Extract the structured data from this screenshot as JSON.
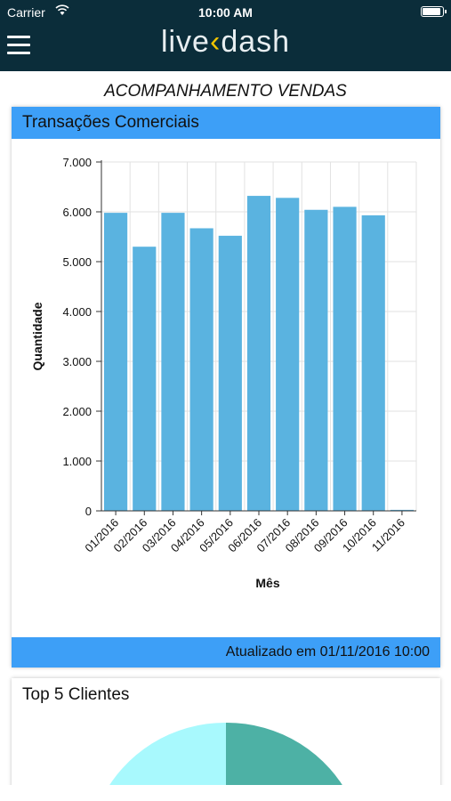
{
  "status_bar": {
    "carrier": "Carrier",
    "time": "10:00 AM",
    "battery_level": 1.0
  },
  "header": {
    "logo_text_a": "live",
    "logo_text_b": "dash",
    "menu_icon": "hamburger-menu-icon"
  },
  "page": {
    "title": "ACOMPANHAMENTO VENDAS"
  },
  "card_sales": {
    "title": "Transações Comerciais",
    "updated": "Atualizado em 01/11/2016 10:00"
  },
  "card_clients": {
    "title": "Top 5 Clientes"
  },
  "colors": {
    "header_bg": "#0b2d3a",
    "accent": "#3d9ff7",
    "bar": "#5ab3e0",
    "pie_a": "#a8f9fd",
    "pie_b": "#4db1a5"
  },
  "chart_data": {
    "type": "bar",
    "categories": [
      "01/2016",
      "02/2016",
      "03/2016",
      "04/2016",
      "05/2016",
      "06/2016",
      "07/2016",
      "08/2016",
      "09/2016",
      "10/2016",
      "11/2016"
    ],
    "values": [
      5980,
      5300,
      5980,
      5670,
      5520,
      6320,
      6280,
      6040,
      6100,
      5930,
      20
    ],
    "xlabel": "Mês",
    "ylabel": "Quantidade",
    "ylim": [
      0,
      7000
    ],
    "yticks": [
      "0",
      "1.000",
      "2.000",
      "3.000",
      "4.000",
      "5.000",
      "6.000",
      "7.000"
    ],
    "grid": true
  }
}
